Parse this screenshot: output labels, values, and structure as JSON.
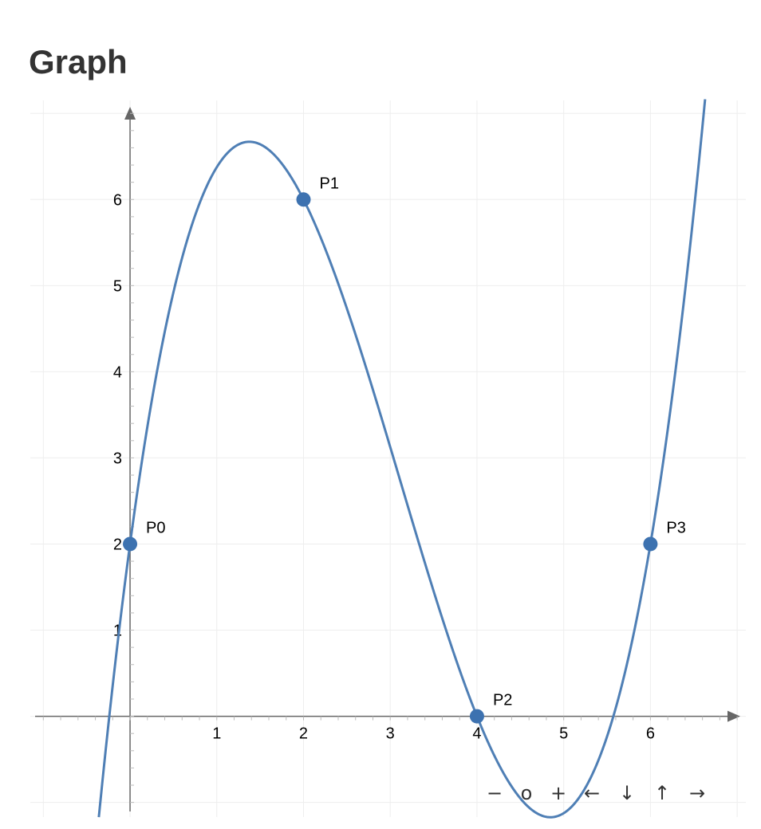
{
  "header": {
    "title": "Graph"
  },
  "chart_data": {
    "type": "line",
    "title": "",
    "xlabel": "",
    "ylabel": "",
    "xlim": [
      -1.15,
      7.1
    ],
    "ylim": [
      -1.17,
      7.15
    ],
    "x_ticks": [
      1,
      2,
      3,
      4,
      5,
      6
    ],
    "y_ticks": [
      1,
      2,
      3,
      4,
      5,
      6
    ],
    "grid": true,
    "curve": {
      "kind": "cubic-interpolant",
      "color": "#4f7fb5",
      "points": [
        {
          "name": "P0",
          "x": 0,
          "y": 2
        },
        {
          "name": "P1",
          "x": 2,
          "y": 6
        },
        {
          "name": "P2",
          "x": 4,
          "y": 0
        },
        {
          "name": "P3",
          "x": 6,
          "y": 2
        }
      ]
    },
    "axis_color": "#666666",
    "grid_color": "#eeeeee",
    "point_color": "#3d72b0"
  },
  "controls": {
    "zoom_out": "−",
    "reset": "o",
    "zoom_in": "+",
    "pan_left": "←",
    "pan_down": "↓",
    "pan_up": "↑",
    "pan_right": "→"
  }
}
